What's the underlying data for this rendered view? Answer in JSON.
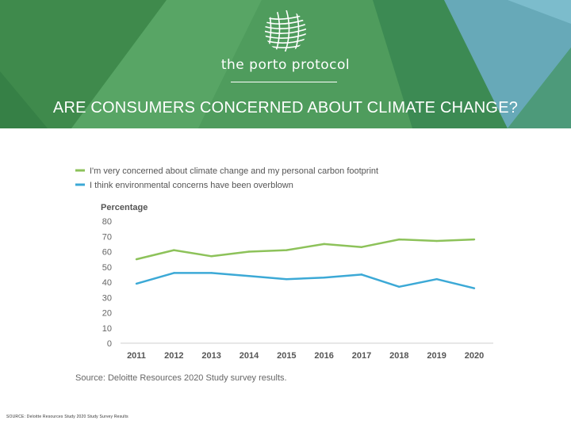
{
  "header": {
    "brand": "the porto protocol",
    "title": "ARE CONSUMERS CONCERNED ABOUT CLIMATE CHANGE?"
  },
  "colors": {
    "green_dark": "#3f8a4c",
    "green_mid": "#5aa15e",
    "teal": "#4f9d8c",
    "blue_light": "#6fb0c4",
    "series_green": "#8dc25a",
    "series_blue": "#3ca9d6"
  },
  "chart_data": {
    "type": "line",
    "title": "",
    "xlabel": "",
    "ylabel": "Percentage",
    "x": [
      "2011",
      "2012",
      "2013",
      "2014",
      "2015",
      "2016",
      "2017",
      "2018",
      "2019",
      "2020"
    ],
    "ylim": [
      0,
      80
    ],
    "yticks": [
      "0",
      "10",
      "20",
      "30",
      "40",
      "50",
      "60",
      "70",
      "80"
    ],
    "series": [
      {
        "name": "I'm very concerned about climate change and my personal carbon footprint",
        "color": "#8dc25a",
        "values": [
          55,
          61,
          57,
          60,
          61,
          65,
          63,
          68,
          67,
          68
        ]
      },
      {
        "name": "I think environmental concerns have been overblown",
        "color": "#3ca9d6",
        "values": [
          39,
          46,
          46,
          44,
          42,
          43,
          45,
          37,
          42,
          36
        ]
      }
    ],
    "source": "Source: Deloitte Resources 2020 Study survey results.",
    "legend": "top-left"
  },
  "footer": {
    "source": "SOURCE: Deloitte Resources Study 2020 Study Survey Results"
  }
}
